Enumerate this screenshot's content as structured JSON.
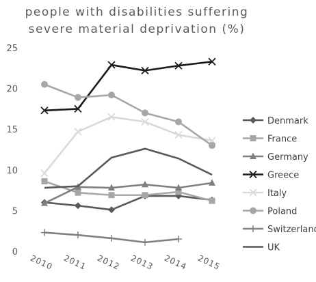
{
  "chart_data": {
    "type": "line",
    "title_lines": [
      "people with disabilities suffering",
      "severe material deprivation (%)"
    ],
    "title": "people with disabilities suffering severe material deprivation (%)",
    "xlabel": "",
    "ylabel": "",
    "categories": [
      "2010",
      "2011",
      "2012",
      "2013",
      "2014",
      "2015"
    ],
    "ylim": [
      0,
      25
    ],
    "yticks": [
      "0",
      "5",
      "10",
      "15",
      "20",
      "25"
    ],
    "grid": false,
    "legend_position": "right",
    "series": [
      {
        "name": "Denmark",
        "color": "#595959",
        "marker": "diamond",
        "values": [
          6.0,
          5.6,
          5.1,
          6.8,
          6.8,
          6.3
        ]
      },
      {
        "name": "France",
        "color": "#a6a6a6",
        "marker": "square",
        "values": [
          8.6,
          7.2,
          6.9,
          6.9,
          7.3,
          6.2
        ]
      },
      {
        "name": "Germany",
        "color": "#7f7f7f",
        "marker": "triangle",
        "values": [
          5.9,
          7.9,
          7.8,
          8.2,
          7.8,
          8.4
        ]
      },
      {
        "name": "Greece",
        "color": "#1a1a1a",
        "marker": "x",
        "values": [
          17.3,
          17.5,
          22.9,
          22.2,
          22.8,
          23.3
        ]
      },
      {
        "name": "Italy",
        "color": "#d9d9d9",
        "marker": "x",
        "values": [
          9.6,
          14.7,
          16.5,
          15.9,
          14.3,
          13.6
        ]
      },
      {
        "name": "Poland",
        "color": "#a6a6a6",
        "marker": "circle",
        "values": [
          20.5,
          18.9,
          19.2,
          17.0,
          15.9,
          13.0
        ]
      },
      {
        "name": "Switzerland",
        "color": "#808080",
        "marker": "plus",
        "values": [
          2.3,
          2.0,
          1.6,
          1.1,
          1.5,
          null
        ]
      },
      {
        "name": "UK",
        "color": "#595959",
        "marker": "none",
        "values": [
          7.8,
          8.0,
          11.5,
          12.6,
          11.4,
          9.4
        ]
      }
    ]
  }
}
